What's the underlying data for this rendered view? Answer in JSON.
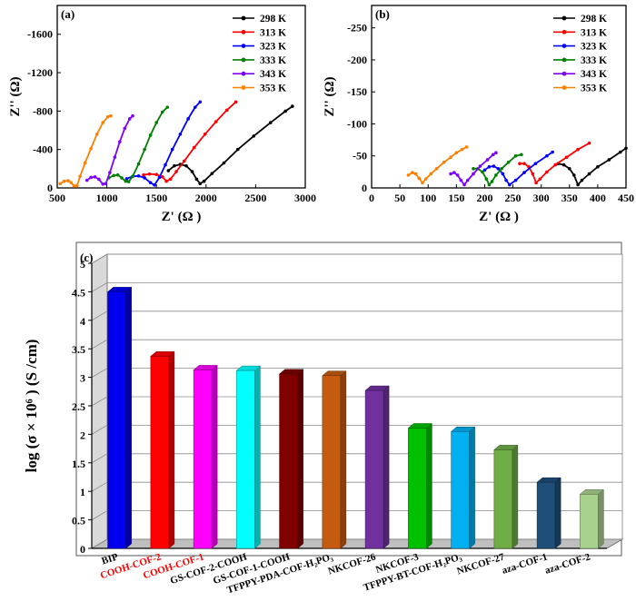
{
  "chart_data": [
    {
      "type": "line",
      "panel_label": "(a)",
      "xlabel": "Z' (Ω )",
      "ylabel": "Z'' (Ω)",
      "xlim": [
        500,
        3000
      ],
      "ylim": [
        0,
        1900
      ],
      "y_inverted_display": true,
      "xticks": [
        500,
        1000,
        1500,
        2000,
        2500,
        3000
      ],
      "yticks": [
        0,
        400,
        800,
        1200,
        1600
      ],
      "ytick_labels": [
        "0",
        "-400",
        "-800",
        "-1200",
        "-1600"
      ],
      "legend_position": "top-right",
      "series": [
        {
          "name": "298 K",
          "color": "#000000",
          "x": [
            1620,
            1680,
            1740,
            1800,
            1860,
            1905,
            1940,
            1980,
            2060,
            2180,
            2320,
            2480,
            2650,
            2800,
            2870
          ],
          "y": [
            180,
            230,
            245,
            230,
            170,
            90,
            45,
            70,
            150,
            260,
            400,
            540,
            680,
            800,
            850
          ]
        },
        {
          "name": "313 K",
          "color": "#ff0000",
          "x": [
            1370,
            1430,
            1500,
            1560,
            1600,
            1640,
            1700,
            1780,
            1880,
            1990,
            2100,
            2210,
            2300
          ],
          "y": [
            135,
            145,
            140,
            115,
            70,
            90,
            170,
            280,
            420,
            560,
            690,
            810,
            895
          ]
        },
        {
          "name": "323 K",
          "color": "#0000ff",
          "x": [
            1200,
            1260,
            1320,
            1380,
            1440,
            1480,
            1530,
            1590,
            1660,
            1740,
            1820,
            1890,
            1940
          ],
          "y": [
            95,
            120,
            125,
            105,
            55,
            30,
            110,
            240,
            400,
            560,
            720,
            840,
            895
          ]
        },
        {
          "name": "333 K",
          "color": "#008000",
          "x": [
            1020,
            1070,
            1110,
            1150,
            1190,
            1220,
            1260,
            1320,
            1380,
            1440,
            1500,
            1560,
            1610
          ],
          "y": [
            105,
            130,
            135,
            105,
            70,
            65,
            120,
            250,
            400,
            550,
            680,
            790,
            840
          ]
        },
        {
          "name": "343 K",
          "color": "#8000ff",
          "x": [
            800,
            840,
            880,
            920,
            960,
            990,
            1030,
            1080,
            1130,
            1180,
            1230,
            1260
          ],
          "y": [
            80,
            110,
            115,
            90,
            40,
            45,
            160,
            320,
            480,
            620,
            720,
            750
          ]
        },
        {
          "name": "353 K",
          "color": "#ff8000",
          "x": [
            530,
            570,
            610,
            640,
            670,
            700,
            730,
            780,
            840,
            900,
            960,
            1010,
            1040
          ],
          "y": [
            45,
            70,
            75,
            55,
            20,
            25,
            120,
            260,
            410,
            560,
            680,
            740,
            750
          ]
        }
      ]
    },
    {
      "type": "line",
      "panel_label": "(b)",
      "xlabel": "Z' (Ω )",
      "ylabel": "Z'' (Ω)",
      "xlim": [
        0,
        450
      ],
      "ylim": [
        0,
        285
      ],
      "y_inverted_display": true,
      "xticks": [
        0,
        50,
        100,
        150,
        200,
        250,
        300,
        350,
        400,
        450
      ],
      "yticks": [
        0,
        50,
        100,
        150,
        200,
        250
      ],
      "ytick_labels": [
        "0",
        "-50",
        "-100",
        "-150",
        "-200",
        "-250"
      ],
      "legend_position": "top-right",
      "series": [
        {
          "name": "298 K",
          "color": "#000000",
          "x": [
            330,
            340,
            350,
            358,
            365,
            372,
            385,
            400,
            420,
            440,
            450
          ],
          "y": [
            38,
            36,
            30,
            20,
            5,
            12,
            22,
            33,
            44,
            56,
            62
          ]
        },
        {
          "name": "313 K",
          "color": "#ff0000",
          "x": [
            262,
            270,
            278,
            285,
            291,
            298,
            310,
            325,
            345,
            365,
            385
          ],
          "y": [
            38,
            38,
            33,
            22,
            8,
            14,
            25,
            36,
            48,
            60,
            70
          ]
        },
        {
          "name": "323 K",
          "color": "#0000ff",
          "x": [
            200,
            208,
            216,
            224,
            232,
            238,
            244,
            255,
            270,
            290,
            310,
            320
          ],
          "y": [
            28,
            33,
            34,
            30,
            22,
            12,
            5,
            12,
            24,
            38,
            50,
            56
          ]
        },
        {
          "name": "333 K",
          "color": "#008000",
          "x": [
            180,
            188,
            196,
            203,
            208,
            213,
            220,
            230,
            242,
            255,
            265
          ],
          "y": [
            30,
            30,
            25,
            14,
            5,
            10,
            20,
            30,
            40,
            50,
            52
          ]
        },
        {
          "name": "343 K",
          "color": "#8000ff",
          "x": [
            140,
            146,
            152,
            158,
            164,
            170,
            180,
            192,
            205,
            215,
            220
          ],
          "y": [
            22,
            24,
            20,
            12,
            5,
            12,
            22,
            34,
            44,
            52,
            55
          ]
        },
        {
          "name": "353 K",
          "color": "#ff8000",
          "x": [
            65,
            72,
            78,
            84,
            90,
            96,
            105,
            115,
            128,
            140,
            150,
            160,
            168
          ],
          "y": [
            20,
            24,
            22,
            15,
            8,
            14,
            22,
            30,
            40,
            48,
            55,
            60,
            64
          ]
        }
      ]
    },
    {
      "type": "bar",
      "panel_label": "(c)",
      "ylabel": "log (σ × 10⁶ ) (S /cm)",
      "ylim": [
        0,
        5
      ],
      "yticks": [
        0,
        0.5,
        1,
        1.5,
        2,
        2.5,
        3,
        3.5,
        4,
        4.5,
        5
      ],
      "ytick_labels": [
        "0",
        "0.5",
        "1",
        "1.5",
        "2",
        "2.5",
        "3",
        "3.5",
        "4",
        "4.5",
        "5"
      ],
      "grid": true,
      "bars": [
        {
          "label": "BIP",
          "value": 4.5,
          "color": "#0000ee",
          "label_color": "#000000"
        },
        {
          "label": "COOH-COF-2",
          "value": 3.37,
          "color": "#ff0000",
          "label_color": "#ff0000"
        },
        {
          "label": "COOH-COF-1",
          "value": 3.13,
          "color": "#ff00ff",
          "label_color": "#ff0000"
        },
        {
          "label": "GS-COF-2-COOH",
          "value": 3.12,
          "color": "#00ffff",
          "label_color": "#000000"
        },
        {
          "label": "GS-COF-1-COOH",
          "value": 3.06,
          "color": "#800000",
          "label_color": "#000000"
        },
        {
          "label": "TFPPY-PDA-COF-H₂PO₃",
          "value": 3.03,
          "color": "#c55a11",
          "label_color": "#000000"
        },
        {
          "label": "NKCOF-26",
          "value": 2.77,
          "color": "#7030a0",
          "label_color": "#000000"
        },
        {
          "label": "NKCOF-3",
          "value": 2.11,
          "color": "#00c000",
          "label_color": "#000000"
        },
        {
          "label": "TFPPY-BT-COF-H₂PO₃",
          "value": 2.05,
          "color": "#00b0f0",
          "label_color": "#000000"
        },
        {
          "label": "NKCOF-27",
          "value": 1.73,
          "color": "#70ad47",
          "label_color": "#000000"
        },
        {
          "label": "aza-COF-1",
          "value": 1.16,
          "color": "#1f4e79",
          "label_color": "#000000"
        },
        {
          "label": "aza-COF-2",
          "value": 0.95,
          "color": "#a9d18e",
          "label_color": "#000000"
        }
      ]
    }
  ]
}
